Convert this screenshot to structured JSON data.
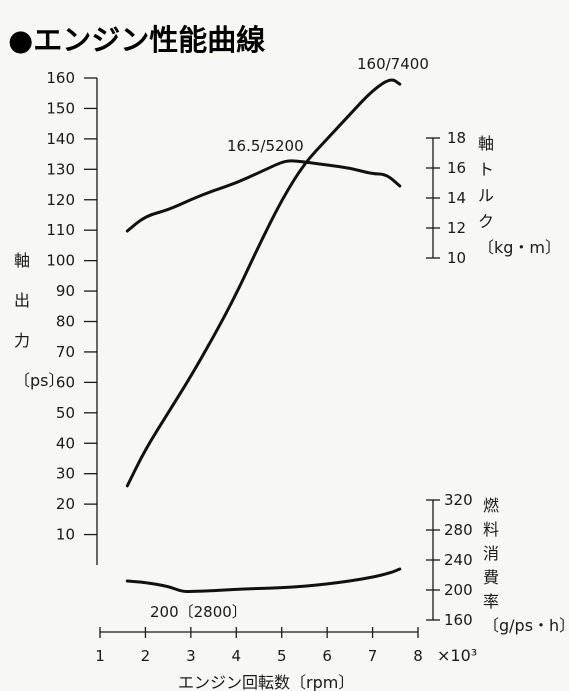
{
  "title": "●エンジン性能曲線",
  "chart_data": {
    "type": "line",
    "title": "●エンジン性能曲線",
    "xlabel": "エンジン回転数〔rpm〕",
    "x_multiplier_label": "×10³",
    "x_ticks": [
      1,
      2,
      3,
      4,
      5,
      6,
      7,
      8
    ],
    "xlim": [
      1,
      8
    ],
    "y_left": {
      "label_chars": [
        "軸",
        "出",
        "力",
        "〔ps〕"
      ],
      "ticks": [
        10,
        20,
        30,
        40,
        50,
        60,
        70,
        80,
        90,
        100,
        110,
        120,
        130,
        140,
        150,
        160
      ],
      "ylim": [
        0,
        160
      ]
    },
    "y_right_torque": {
      "label_chars": [
        "軸",
        "ト",
        "ル",
        "ク",
        "〔kg・m〕"
      ],
      "ticks": [
        10,
        12,
        14,
        16,
        18
      ],
      "ylim": [
        10,
        18
      ]
    },
    "y_right_fuel": {
      "label_chars": [
        "燃",
        "料",
        "消",
        "費",
        "率",
        "〔g/ps・h〕"
      ],
      "ticks": [
        160,
        200,
        240,
        280,
        320
      ],
      "ylim": [
        160,
        320
      ]
    },
    "series": [
      {
        "key": "power",
        "axis": "left",
        "x": [
          1.6,
          2.0,
          2.5,
          3.0,
          3.5,
          4.0,
          4.5,
          5.0,
          5.5,
          6.0,
          6.5,
          7.0,
          7.4,
          7.6
        ],
        "y": [
          26,
          38,
          50,
          62,
          75,
          89,
          105,
          120,
          132,
          140,
          148,
          156,
          160,
          158
        ]
      },
      {
        "key": "torque",
        "axis": "right_torque",
        "x": [
          1.6,
          2.0,
          2.5,
          3.0,
          3.5,
          4.0,
          4.5,
          5.0,
          5.2,
          5.5,
          6.0,
          6.5,
          7.0,
          7.3,
          7.6
        ],
        "y": [
          11.8,
          12.8,
          13.2,
          13.9,
          14.5,
          15.0,
          15.7,
          16.4,
          16.5,
          16.4,
          16.2,
          16.0,
          15.6,
          15.6,
          14.8
        ]
      },
      {
        "key": "fuel",
        "axis": "right_fuel",
        "x": [
          1.6,
          2.0,
          2.5,
          2.8,
          3.0,
          3.5,
          4.0,
          4.5,
          5.0,
          5.5,
          6.0,
          6.5,
          7.0,
          7.4,
          7.6
        ],
        "y": [
          212,
          210,
          205,
          198,
          198,
          199,
          201,
          202,
          203,
          205,
          208,
          212,
          217,
          223,
          228
        ]
      }
    ],
    "annotations": [
      "160/7400",
      "16.5/5200",
      "200〔2800〕"
    ]
  }
}
